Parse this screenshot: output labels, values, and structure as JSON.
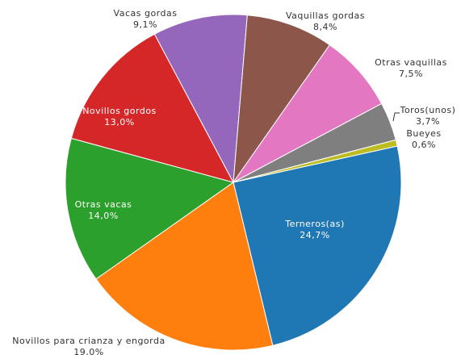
{
  "chart_data": {
    "type": "pie",
    "categories": [
      "Terneros(as)",
      "Novillos para crianza y engorda",
      "Otras vacas",
      "Novillos gordos",
      "Vacas gordas",
      "Vaquillas gordas",
      "Otras vaquillas",
      "Toros(unos)",
      "Bueyes"
    ],
    "values": [
      24.7,
      19.0,
      14.0,
      13.0,
      9.1,
      8.4,
      7.5,
      3.7,
      0.6
    ],
    "value_labels": [
      "24,7%",
      "19,0%",
      "14,0%",
      "13,0%",
      "9,1%",
      "8,4%",
      "7,5%",
      "3,7%",
      "0,6%"
    ],
    "colors": [
      "#1f77b4",
      "#ff7f0e",
      "#2ca02c",
      "#d62728",
      "#9467bd",
      "#8c564b",
      "#e377c2",
      "#7f7f7f",
      "#bcbd22"
    ]
  }
}
